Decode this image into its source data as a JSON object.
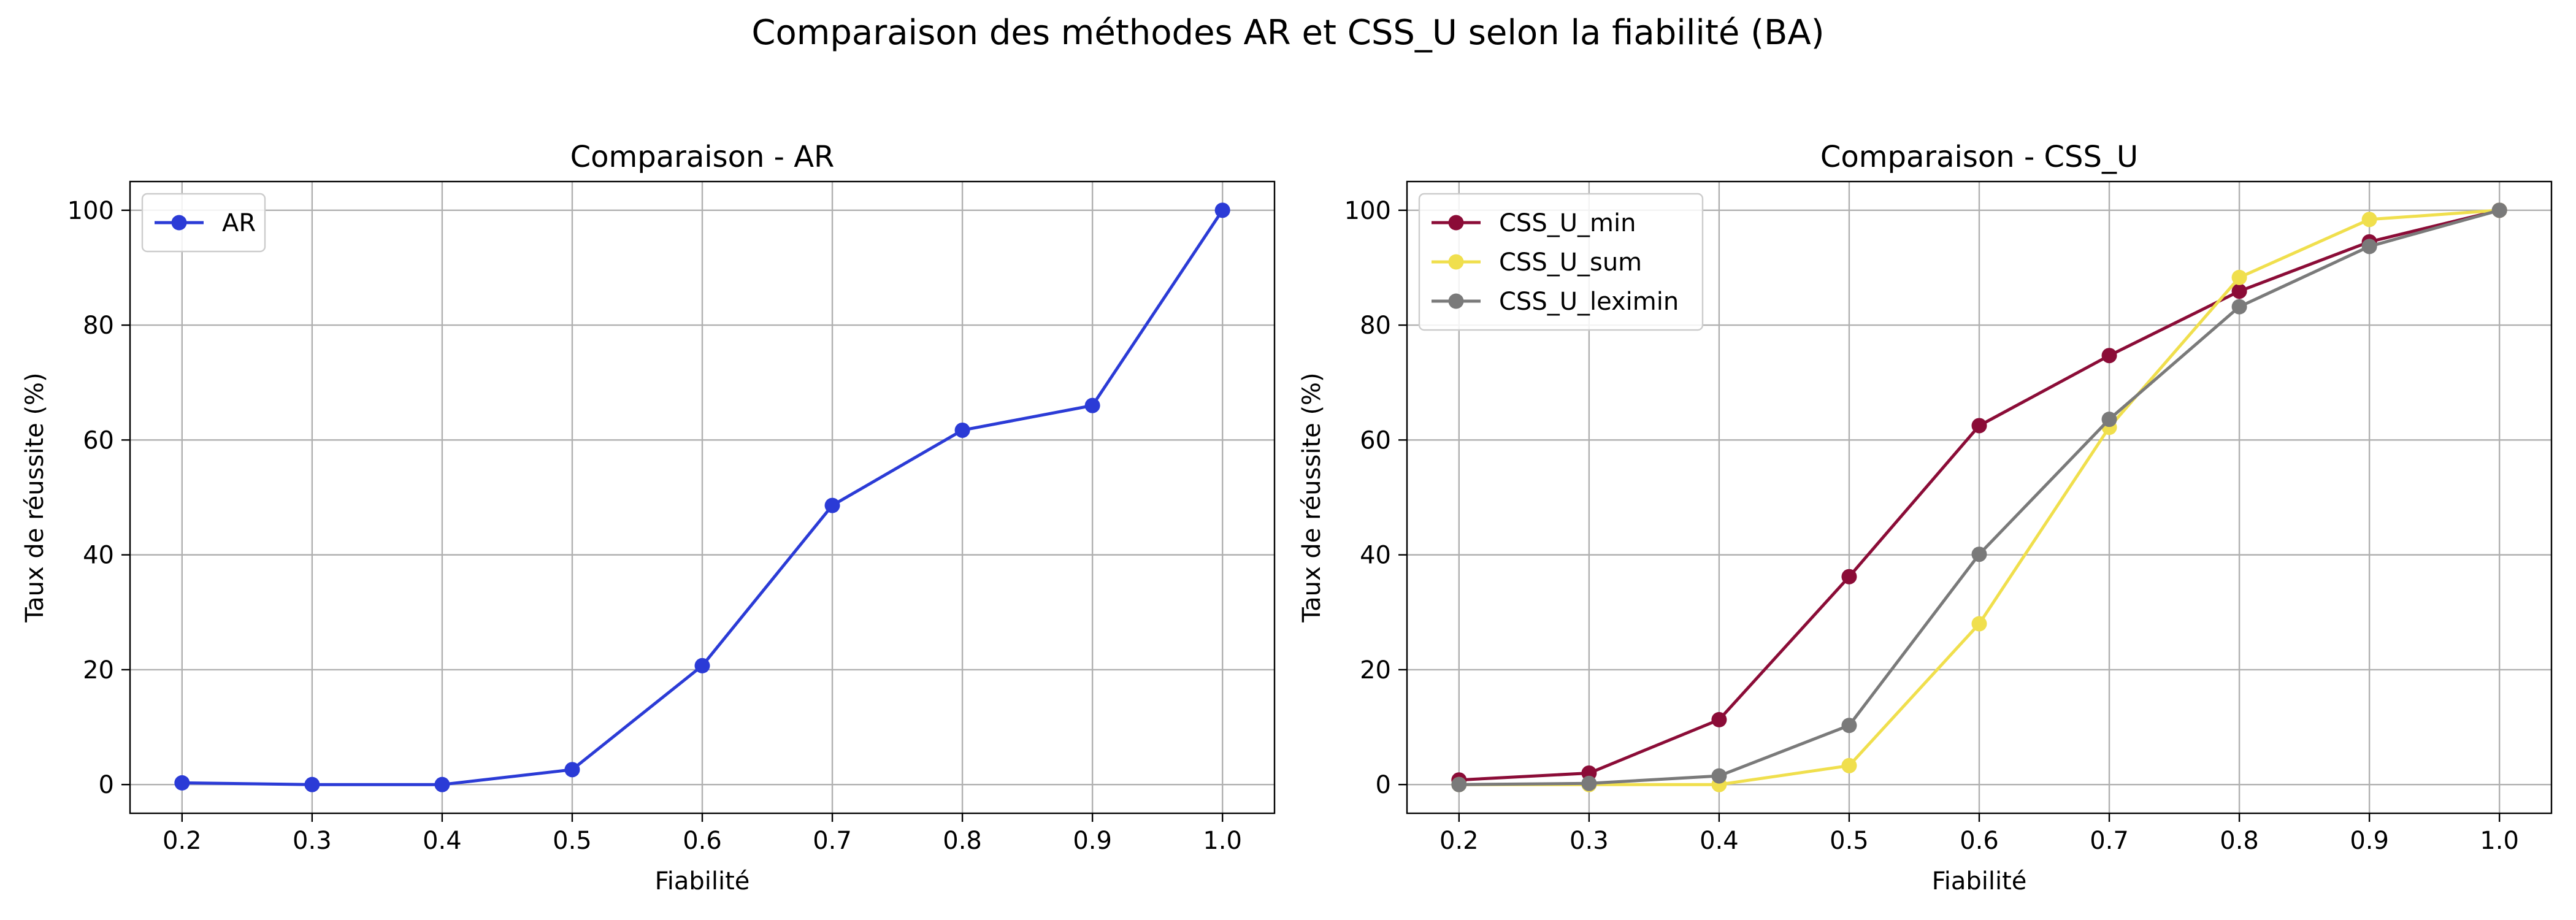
{
  "suptitle": "Comparaison des méthodes AR et CSS_U selon la fiabilité (BA)",
  "chart_data": [
    {
      "type": "line",
      "title": "Comparaison - AR",
      "xlabel": "Fiabilité",
      "ylabel": "Taux de réussite (%)",
      "x": [
        0.2,
        0.3,
        0.4,
        0.5,
        0.6,
        0.7,
        0.8,
        0.9,
        1.0
      ],
      "xticks": [
        "0.2",
        "0.3",
        "0.4",
        "0.5",
        "0.6",
        "0.7",
        "0.8",
        "0.9",
        "1.0"
      ],
      "yticks": [
        "0",
        "20",
        "40",
        "60",
        "80",
        "100"
      ],
      "xlim": [
        0.16,
        1.04
      ],
      "ylim": [
        -5,
        105
      ],
      "grid": true,
      "legend_position": "top-left",
      "series": [
        {
          "name": "AR",
          "color": "#2b3bd6",
          "values": [
            0.3,
            0.0,
            0.0,
            2.6,
            20.7,
            48.6,
            61.7,
            66.0,
            100.0
          ]
        }
      ]
    },
    {
      "type": "line",
      "title": "Comparaison - CSS_U",
      "xlabel": "Fiabilité",
      "ylabel": "Taux de réussite (%)",
      "x": [
        0.2,
        0.3,
        0.4,
        0.5,
        0.6,
        0.7,
        0.8,
        0.9,
        1.0
      ],
      "xticks": [
        "0.2",
        "0.3",
        "0.4",
        "0.5",
        "0.6",
        "0.7",
        "0.8",
        "0.9",
        "1.0"
      ],
      "yticks": [
        "0",
        "20",
        "40",
        "60",
        "80",
        "100"
      ],
      "xlim": [
        0.16,
        1.04
      ],
      "ylim": [
        -5,
        105
      ],
      "grid": true,
      "legend_position": "top-left",
      "series": [
        {
          "name": "CSS_U_min",
          "color": "#8b0c37",
          "values": [
            0.8,
            2.0,
            11.3,
            36.2,
            62.5,
            74.7,
            85.9,
            94.5,
            100.0
          ]
        },
        {
          "name": "CSS_U_sum",
          "color": "#f0df4d",
          "values": [
            0.0,
            0.0,
            0.0,
            3.3,
            28.0,
            62.2,
            88.3,
            98.4,
            100.0
          ]
        },
        {
          "name": "CSS_U_leximin",
          "color": "#7a7a7a",
          "values": [
            0.0,
            0.2,
            1.5,
            10.3,
            40.1,
            63.6,
            83.2,
            93.7,
            100.0
          ]
        }
      ]
    }
  ]
}
